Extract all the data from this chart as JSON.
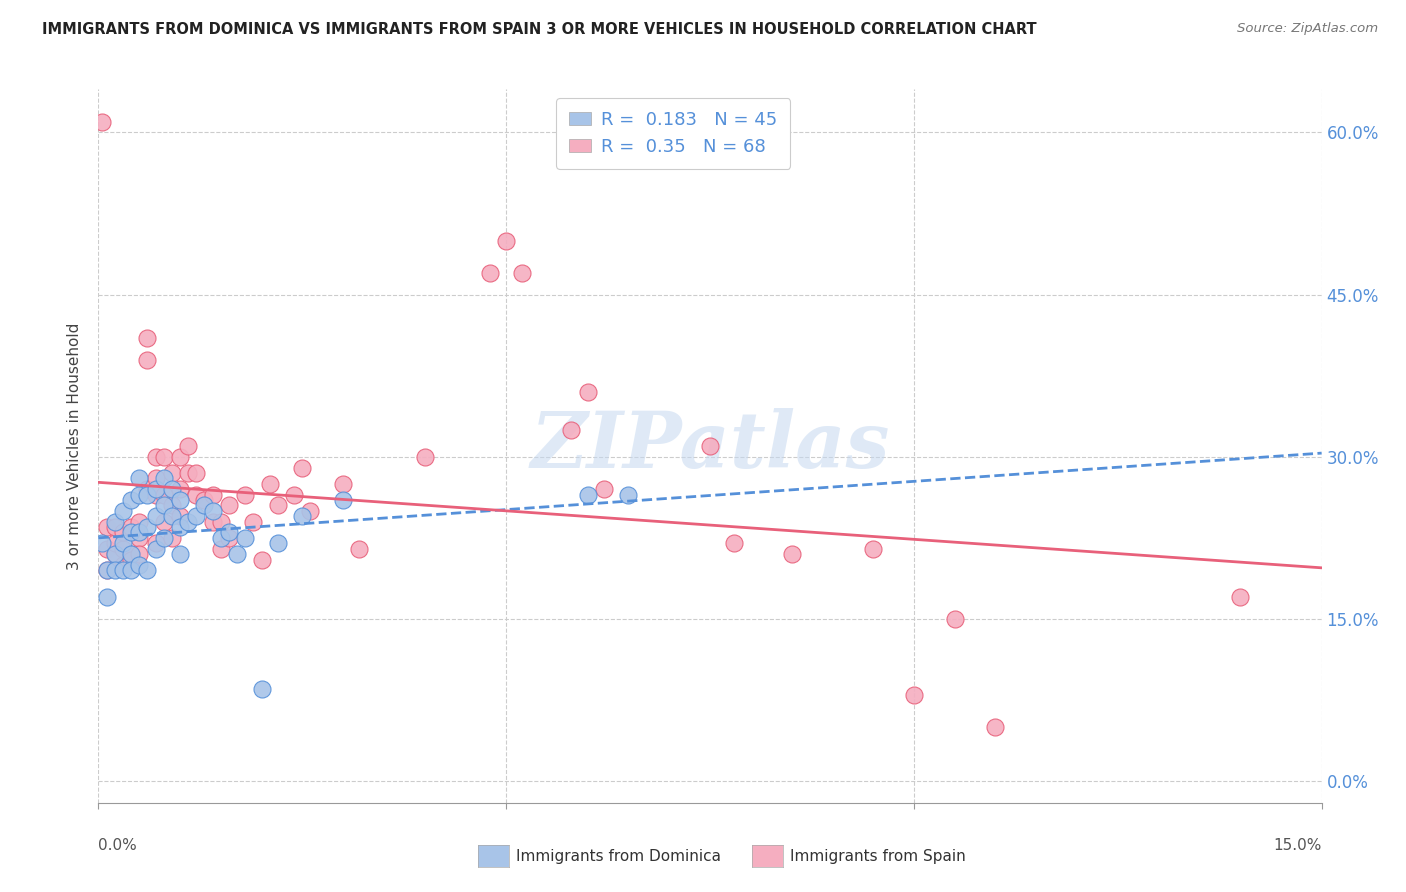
{
  "title": "IMMIGRANTS FROM DOMINICA VS IMMIGRANTS FROM SPAIN 3 OR MORE VEHICLES IN HOUSEHOLD CORRELATION CHART",
  "source": "Source: ZipAtlas.com",
  "ylabel": "3 or more Vehicles in Household",
  "dominica_color": "#a8c4e8",
  "spain_color": "#f5aec0",
  "dominica_line_color": "#5590d9",
  "spain_line_color": "#e8607a",
  "dominica_R": 0.183,
  "dominica_N": 45,
  "spain_R": 0.35,
  "spain_N": 68,
  "watermark": "ZIPatlas",
  "legend_label1": "Immigrants from Dominica",
  "legend_label2": "Immigrants from Spain",
  "xmin": 0.0,
  "xmax": 0.15,
  "ymin": -0.02,
  "ymax": 0.64,
  "ytick_vals": [
    0.0,
    0.15,
    0.3,
    0.45,
    0.6
  ],
  "ytick_labels": [
    "0.0%",
    "15.0%",
    "30.0%",
    "45.0%",
    "60.0%"
  ],
  "dominica_x": [
    0.0005,
    0.001,
    0.001,
    0.002,
    0.002,
    0.002,
    0.003,
    0.003,
    0.003,
    0.004,
    0.004,
    0.004,
    0.004,
    0.005,
    0.005,
    0.005,
    0.005,
    0.006,
    0.006,
    0.006,
    0.007,
    0.007,
    0.007,
    0.008,
    0.008,
    0.008,
    0.009,
    0.009,
    0.01,
    0.01,
    0.01,
    0.011,
    0.012,
    0.013,
    0.014,
    0.015,
    0.016,
    0.017,
    0.018,
    0.02,
    0.022,
    0.025,
    0.03,
    0.06,
    0.065
  ],
  "dominica_y": [
    0.22,
    0.17,
    0.195,
    0.24,
    0.21,
    0.195,
    0.25,
    0.22,
    0.195,
    0.26,
    0.23,
    0.21,
    0.195,
    0.28,
    0.265,
    0.23,
    0.2,
    0.265,
    0.235,
    0.195,
    0.27,
    0.245,
    0.215,
    0.28,
    0.255,
    0.225,
    0.27,
    0.245,
    0.26,
    0.235,
    0.21,
    0.24,
    0.245,
    0.255,
    0.25,
    0.225,
    0.23,
    0.21,
    0.225,
    0.085,
    0.22,
    0.245,
    0.26,
    0.265,
    0.265
  ],
  "spain_x": [
    0.0005,
    0.001,
    0.001,
    0.001,
    0.002,
    0.002,
    0.002,
    0.003,
    0.003,
    0.003,
    0.004,
    0.004,
    0.004,
    0.005,
    0.005,
    0.005,
    0.006,
    0.006,
    0.006,
    0.007,
    0.007,
    0.007,
    0.007,
    0.008,
    0.008,
    0.008,
    0.009,
    0.009,
    0.009,
    0.01,
    0.01,
    0.01,
    0.011,
    0.011,
    0.012,
    0.012,
    0.013,
    0.014,
    0.014,
    0.015,
    0.015,
    0.016,
    0.016,
    0.018,
    0.019,
    0.02,
    0.021,
    0.022,
    0.024,
    0.025,
    0.026,
    0.03,
    0.032,
    0.04,
    0.048,
    0.05,
    0.052,
    0.058,
    0.06,
    0.062,
    0.075,
    0.078,
    0.085,
    0.095,
    0.1,
    0.105,
    0.11,
    0.14
  ],
  "spain_y": [
    0.61,
    0.195,
    0.215,
    0.235,
    0.21,
    0.22,
    0.235,
    0.2,
    0.215,
    0.23,
    0.21,
    0.235,
    0.205,
    0.24,
    0.225,
    0.21,
    0.39,
    0.41,
    0.27,
    0.28,
    0.3,
    0.22,
    0.265,
    0.3,
    0.265,
    0.24,
    0.285,
    0.255,
    0.225,
    0.3,
    0.27,
    0.245,
    0.31,
    0.285,
    0.285,
    0.265,
    0.26,
    0.24,
    0.265,
    0.24,
    0.215,
    0.255,
    0.225,
    0.265,
    0.24,
    0.205,
    0.275,
    0.255,
    0.265,
    0.29,
    0.25,
    0.275,
    0.215,
    0.3,
    0.47,
    0.5,
    0.47,
    0.325,
    0.36,
    0.27,
    0.31,
    0.22,
    0.21,
    0.215,
    0.08,
    0.15,
    0.05,
    0.17
  ]
}
